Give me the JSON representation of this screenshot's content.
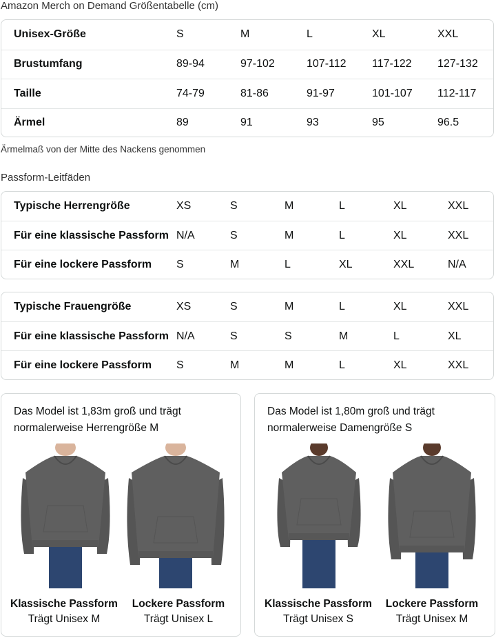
{
  "size_chart": {
    "title": "Amazon Merch on Demand Größentabelle (cm)",
    "rows": [
      [
        "Unisex-Größe",
        "S",
        "M",
        "L",
        "XL",
        "XXL"
      ],
      [
        "Brustumfang",
        "89-94",
        "97-102",
        "107-112",
        "117-122",
        "127-132"
      ],
      [
        "Taille",
        "74-79",
        "81-86",
        "91-97",
        "101-107",
        "112-117"
      ],
      [
        "Ärmel",
        "89",
        "91",
        "93",
        "95",
        "96.5"
      ]
    ],
    "note": "Ärmelmaß von der Mitte des Nackens genommen"
  },
  "fit_guides": {
    "title": "Passform-Leitfäden",
    "men": [
      [
        "Typische Herrengröße",
        "XS",
        "S",
        "M",
        "L",
        "XL",
        "XXL"
      ],
      [
        "Für eine klassische Passform",
        "N/A",
        "S",
        "M",
        "L",
        "XL",
        "XXL"
      ],
      [
        "Für eine lockere Passform",
        "S",
        "M",
        "L",
        "XL",
        "XXL",
        "N/A"
      ]
    ],
    "women": [
      [
        "Typische Frauengröße",
        "XS",
        "S",
        "M",
        "L",
        "XL",
        "XXL"
      ],
      [
        "Für eine klassische Passform",
        "N/A",
        "S",
        "S",
        "M",
        "L",
        "XL"
      ],
      [
        "Für eine lockere Passform",
        "S",
        "M",
        "M",
        "L",
        "XL",
        "XXL"
      ]
    ]
  },
  "models": [
    {
      "desc_line1": "Das Model ist 1,83m groß und trägt",
      "desc_line2": "normalerweise Herrengröße M",
      "fits": [
        {
          "title": "Klassische Passform",
          "sub": "Trägt Unisex M"
        },
        {
          "title": "Lockere Passform",
          "sub": "Trägt Unisex L"
        }
      ]
    },
    {
      "desc_line1": "Das Model ist 1,80m groß und trägt",
      "desc_line2": "normalerweise Damengröße S",
      "fits": [
        {
          "title": "Klassische Passform",
          "sub": "Trägt Unisex S"
        },
        {
          "title": "Lockere Passform",
          "sub": "Trägt Unisex M"
        }
      ]
    }
  ],
  "colors": {
    "hoodie": "#5f5f5f",
    "jeans": "#2d4670",
    "border": "#d5d9d9"
  }
}
